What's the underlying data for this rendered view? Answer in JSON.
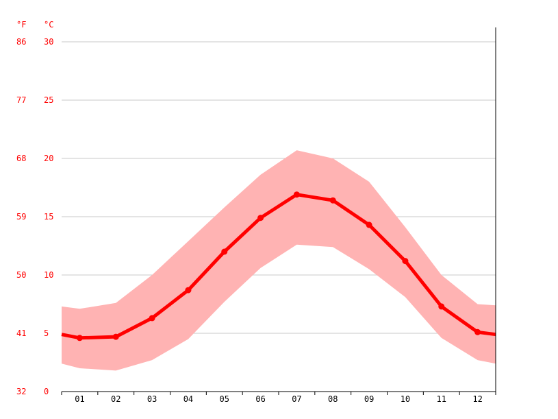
{
  "chart_data": {
    "type": "line",
    "unit_labels": {
      "left": "°F",
      "right": "°C"
    },
    "categories": [
      "01",
      "02",
      "03",
      "04",
      "05",
      "06",
      "07",
      "08",
      "09",
      "10",
      "11",
      "12"
    ],
    "y_ticks_c": [
      "30",
      "25",
      "20",
      "15",
      "10",
      "5",
      "0"
    ],
    "y_ticks_f": [
      "86",
      "77",
      "68",
      "59",
      "50",
      "41",
      "32"
    ],
    "ylim": [
      0,
      31
    ],
    "series": [
      {
        "values": [
          4.6,
          4.7,
          6.3,
          8.7,
          12.0,
          14.9,
          16.9,
          16.4,
          14.3,
          11.2,
          7.3,
          5.1
        ]
      }
    ],
    "band": {
      "high": [
        7.1,
        7.6,
        10.0,
        12.9,
        15.8,
        18.6,
        20.7,
        20.0,
        18.0,
        14.1,
        10.0,
        7.5
      ],
      "low": [
        2.0,
        1.8,
        2.7,
        4.5,
        7.7,
        10.6,
        12.6,
        12.4,
        10.5,
        8.1,
        4.6,
        2.7
      ],
      "edge_high": [
        7.3,
        7.4
      ],
      "edge_low": [
        2.4,
        2.4
      ]
    },
    "edge_values": [
      4.9,
      4.9
    ],
    "grid": true,
    "colors": {
      "line": "#ff0000",
      "band": "#ffb3b3",
      "grid": "#c8c8c8",
      "axis": "#000000",
      "celsius_labels": "#ff0000",
      "fahrenheit_labels": "#ff0000",
      "month_labels": "#000000"
    }
  }
}
